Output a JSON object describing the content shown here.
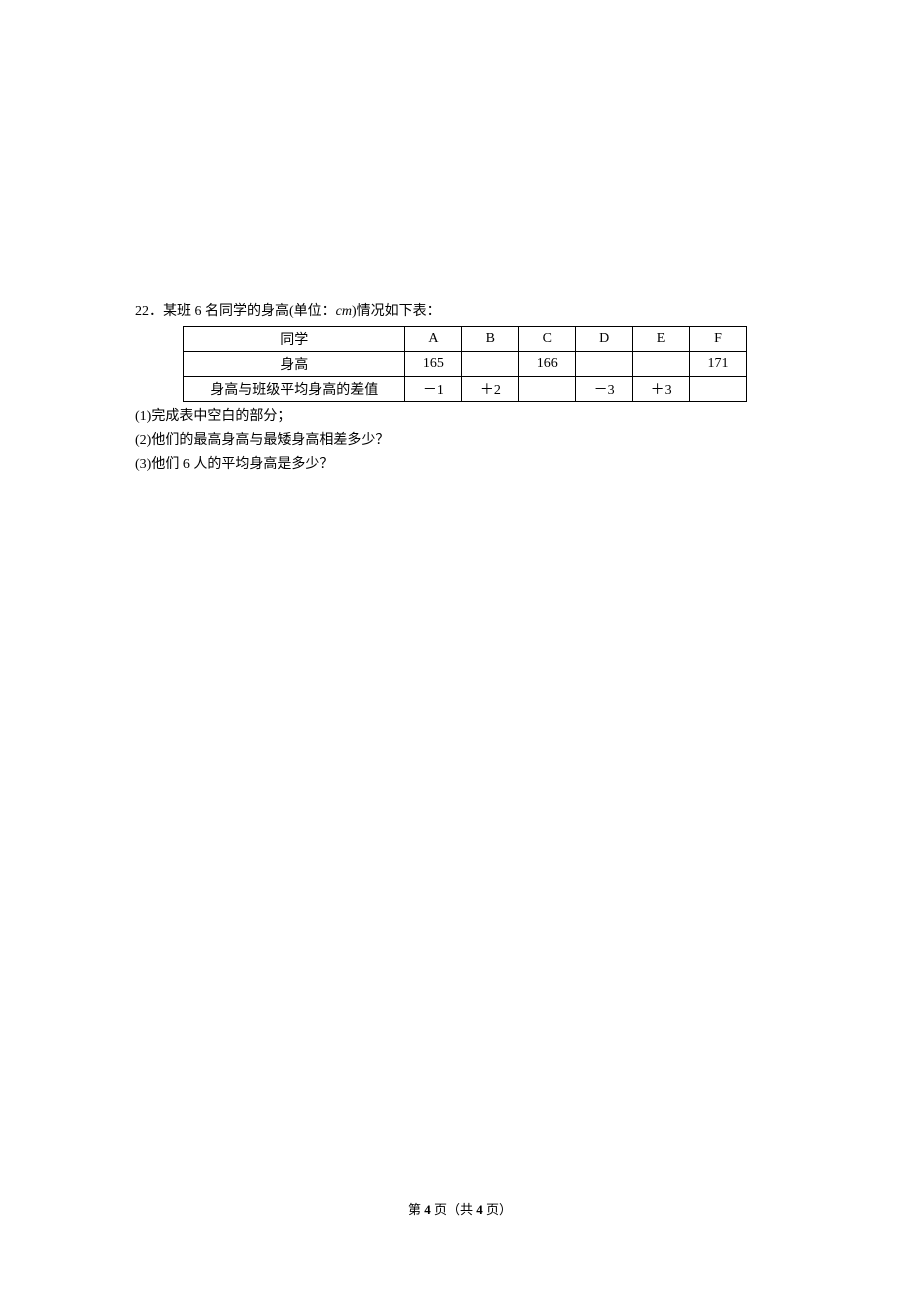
{
  "problem": {
    "number": "22．",
    "intro_prefix": "某班 6 名同学的身高(单位：",
    "intro_unit": "cm",
    "intro_suffix": ")情况如下表："
  },
  "table": {
    "row1": {
      "label": "同学",
      "cells": [
        "A",
        "B",
        "C",
        "D",
        "E",
        "F"
      ]
    },
    "row2": {
      "label": "身高",
      "cells": [
        "165",
        "",
        "166",
        "",
        "",
        "171"
      ]
    },
    "row3": {
      "label": "身高与班级平均身高的差值",
      "cells": [
        "－1",
        "＋2",
        "",
        "－3",
        "＋3",
        ""
      ]
    }
  },
  "questions": {
    "q1": "(1)完成表中空白的部分；",
    "q2": "(2)他们的最高身高与最矮身高相差多少？",
    "q3": "(3)他们 6 人的平均身高是多少？"
  },
  "footer": {
    "prefix": "第 ",
    "current": "4",
    "middle": " 页（共 ",
    "total": "4",
    "suffix": " 页）"
  }
}
